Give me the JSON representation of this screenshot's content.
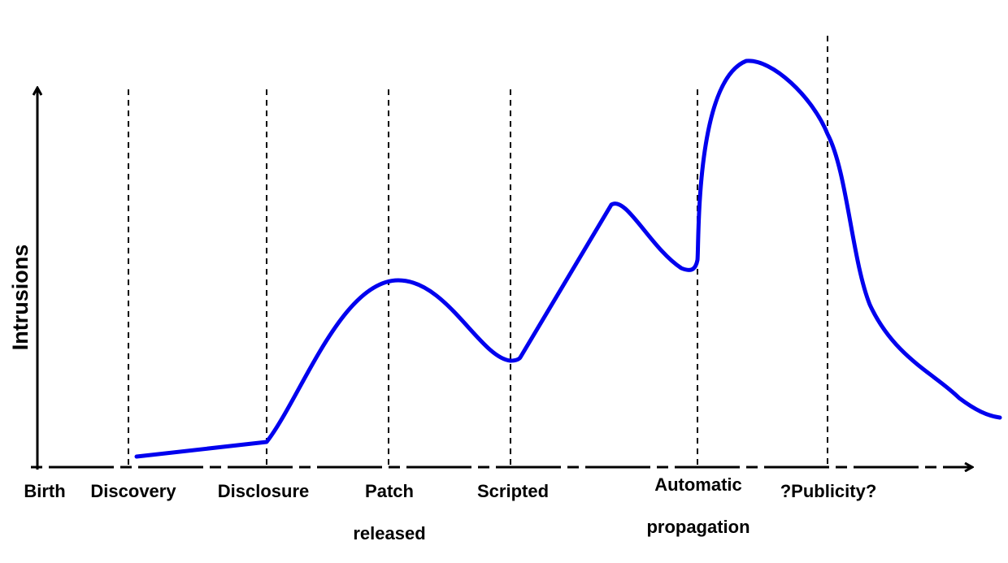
{
  "diagram": {
    "y_axis_label": "Intrusions",
    "phases": [
      {
        "id": "birth",
        "lines": [
          "Birth"
        ]
      },
      {
        "id": "discovery",
        "lines": [
          "Discovery"
        ]
      },
      {
        "id": "disclosure",
        "lines": [
          "Disclosure"
        ]
      },
      {
        "id": "patch-released",
        "lines": [
          "Patch",
          "released"
        ]
      },
      {
        "id": "scripted",
        "lines": [
          "Scripted"
        ]
      },
      {
        "id": "automatic-propagation",
        "lines": [
          "Automatic",
          "propagation"
        ]
      },
      {
        "id": "publicity",
        "lines": [
          "?Publicity?"
        ]
      }
    ],
    "curve": {
      "description": "Intrusions over the vulnerability lifecycle",
      "color": "#0000ee"
    },
    "colors": {
      "axis": "#000000",
      "curve": "#0000ee",
      "guide": "#000000"
    }
  }
}
